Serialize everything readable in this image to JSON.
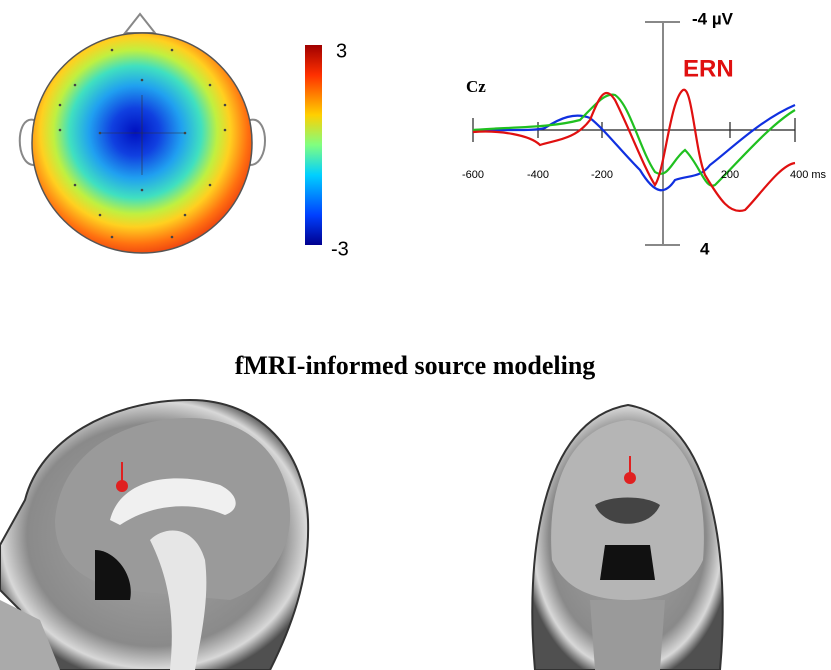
{
  "topomap": {
    "colorbar_max": "3",
    "colorbar_min": "-3"
  },
  "erp": {
    "channel": "Cz",
    "component": "ERN",
    "y_top": "-4 µV",
    "y_bottom": "4",
    "x_ticks": [
      "-600",
      "-400",
      "-200",
      "200",
      "400 ms"
    ]
  },
  "source_modeling": {
    "title": "fMRI-informed source modeling"
  }
}
